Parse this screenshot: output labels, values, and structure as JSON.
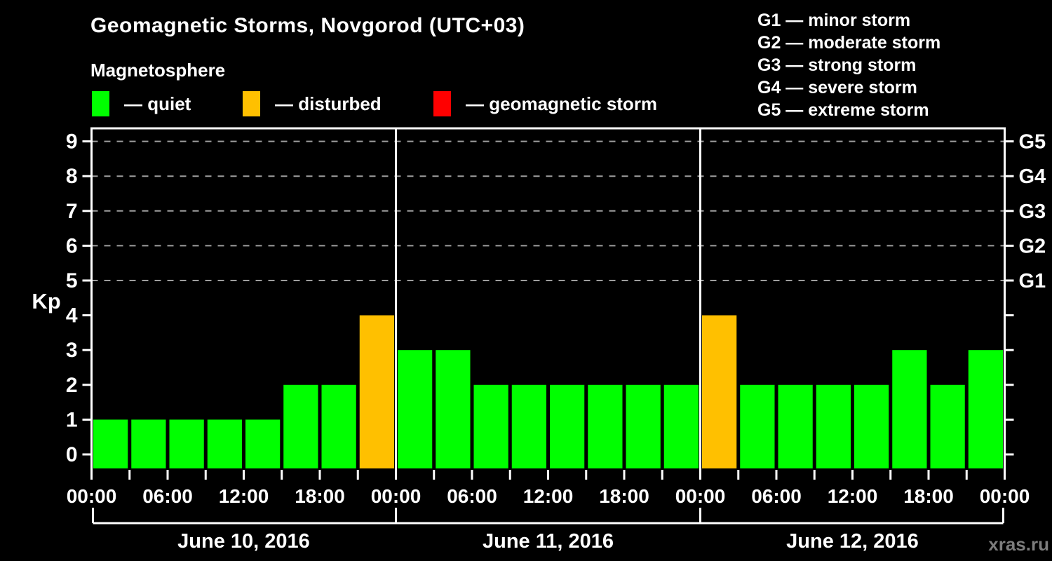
{
  "header": {
    "title": "Geomagnetic Storms, Novgorod (UTC+03)",
    "subtitle": "Magnetosphere"
  },
  "legend": {
    "items": [
      {
        "name": "quiet",
        "label": "— quiet",
        "color": "#00ff00"
      },
      {
        "name": "disturbed",
        "label": "— disturbed",
        "color": "#ffc000"
      },
      {
        "name": "geomagnetic-storm",
        "label": "— geomagnetic storm",
        "color": "#ff0000"
      }
    ]
  },
  "g_scale": {
    "items": [
      {
        "text": "G1 — minor storm"
      },
      {
        "text": "G2 — moderate storm"
      },
      {
        "text": "G3 — strong storm"
      },
      {
        "text": "G4 — severe storm"
      },
      {
        "text": "G5 — extreme storm"
      }
    ]
  },
  "watermark": "xras.ru",
  "chart_data": {
    "type": "bar",
    "title": "Geomagnetic Storms, Novgorod (UTC+03)",
    "subtitle": "Magnetosphere",
    "ylabel": "Kp",
    "ylim": [
      0,
      9
    ],
    "yticks": [
      0,
      1,
      2,
      3,
      4,
      5,
      6,
      7,
      8,
      9
    ],
    "gridlines_at_kp": [
      5,
      6,
      7,
      8,
      9
    ],
    "grid_style": "dashed",
    "legend_position": "top",
    "right_axis_labels": [
      {
        "label": "G1",
        "kp": 5
      },
      {
        "label": "G2",
        "kp": 6
      },
      {
        "label": "G3",
        "kp": 7
      },
      {
        "label": "G4",
        "kp": 8
      },
      {
        "label": "G5",
        "kp": 9
      }
    ],
    "hours_per_bar": 3,
    "x_tick_interval_hours": 3,
    "x_label_interval_hours": 6,
    "x_tick_labels": [
      "00:00",
      "06:00",
      "12:00",
      "18:00",
      "00:00",
      "06:00",
      "12:00",
      "18:00",
      "00:00",
      "06:00",
      "12:00",
      "18:00",
      "00:00"
    ],
    "days": [
      {
        "date": "June 10, 2016",
        "kp": [
          1,
          1,
          1,
          1,
          1,
          2,
          2,
          4
        ]
      },
      {
        "date": "June 11, 2016",
        "kp": [
          3,
          3,
          2,
          2,
          2,
          2,
          2,
          2
        ]
      },
      {
        "date": "June 12, 2016",
        "kp": [
          4,
          2,
          2,
          2,
          2,
          3,
          2,
          3
        ]
      }
    ],
    "bar_colors": {
      "quiet": "#00ff00",
      "disturbed": "#ffc000",
      "storm": "#ff0000"
    },
    "color_rule": {
      "disturbed_min_kp": 4,
      "storm_min_kp": 5
    }
  },
  "colors": {
    "background": "#000000",
    "text": "#ffffff",
    "axis": "#ffffff",
    "grid": "#9e9e9e",
    "watermark": "#7d7d7d"
  }
}
